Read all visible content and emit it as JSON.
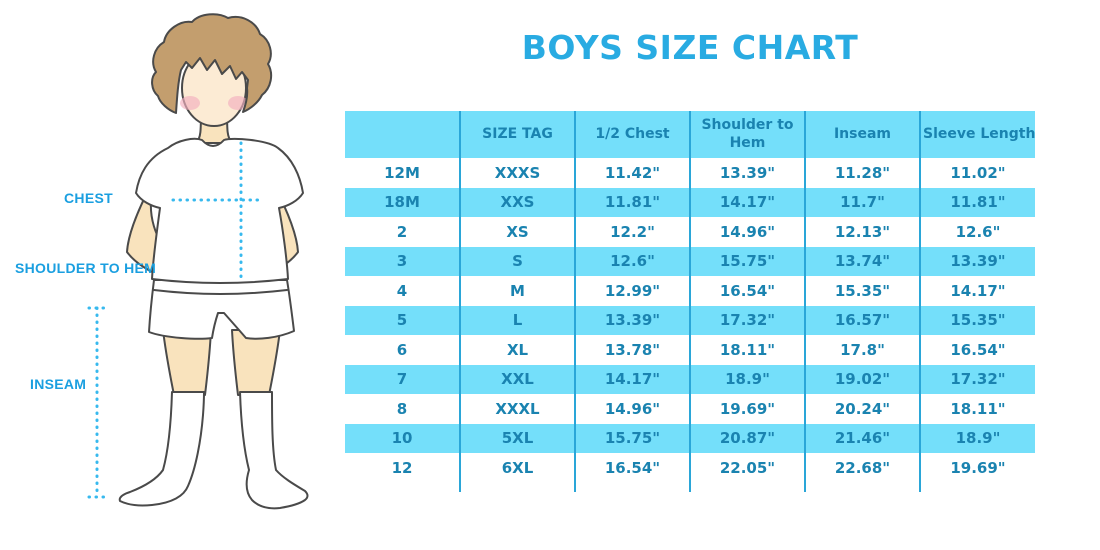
{
  "chart_data": {
    "type": "table",
    "title": "BOYS SIZE CHART",
    "columns": [
      "",
      "SIZE TAG",
      "1/2 Chest",
      "Shoulder to Hem",
      "Inseam",
      "Sleeve Length"
    ],
    "rows": [
      [
        "12M",
        "XXXS",
        "11.42\"",
        "13.39\"",
        "11.28\"",
        "11.02\""
      ],
      [
        "18M",
        "XXS",
        "11.81\"",
        "14.17\"",
        "11.7\"",
        "11.81\""
      ],
      [
        "2",
        "XS",
        "12.2\"",
        "14.96\"",
        "12.13\"",
        "12.6\""
      ],
      [
        "3",
        "S",
        "12.6\"",
        "15.75\"",
        "13.74\"",
        "13.39\""
      ],
      [
        "4",
        "M",
        "12.99\"",
        "16.54\"",
        "15.35\"",
        "14.17\""
      ],
      [
        "5",
        "L",
        "13.39\"",
        "17.32\"",
        "16.57\"",
        "15.35\""
      ],
      [
        "6",
        "XL",
        "13.78\"",
        "18.11\"",
        "17.8\"",
        "16.54\""
      ],
      [
        "7",
        "XXL",
        "14.17\"",
        "18.9\"",
        "19.02\"",
        "17.32\""
      ],
      [
        "8",
        "XXXL",
        "14.96\"",
        "19.69\"",
        "20.24\"",
        "18.11\""
      ],
      [
        "10",
        "5XL",
        "15.75\"",
        "20.87\"",
        "21.46\"",
        "18.9\""
      ],
      [
        "12",
        "6XL",
        "16.54\"",
        "22.05\"",
        "22.68\"",
        "19.69\""
      ]
    ],
    "layout": {
      "row_striping": "white / cyan alternating",
      "grid": "vertical dividers only"
    }
  },
  "figure": {
    "labels": {
      "chest": "CHEST",
      "shoulder_to_hem": "SHOULDER TO HEM",
      "inseam": "INSEAM"
    }
  },
  "colors": {
    "accent_blue": "#29abe2",
    "cell_cyan": "#74dffa",
    "divider_blue": "#2aa6d8",
    "table_text": "#1a83b0",
    "label_blue": "#1a9fe0",
    "dotted_line": "#37b9ee",
    "hair_brown": "#c39e6e",
    "skin": "#f9e3bd",
    "cheek_pink": "#f2afbf"
  }
}
